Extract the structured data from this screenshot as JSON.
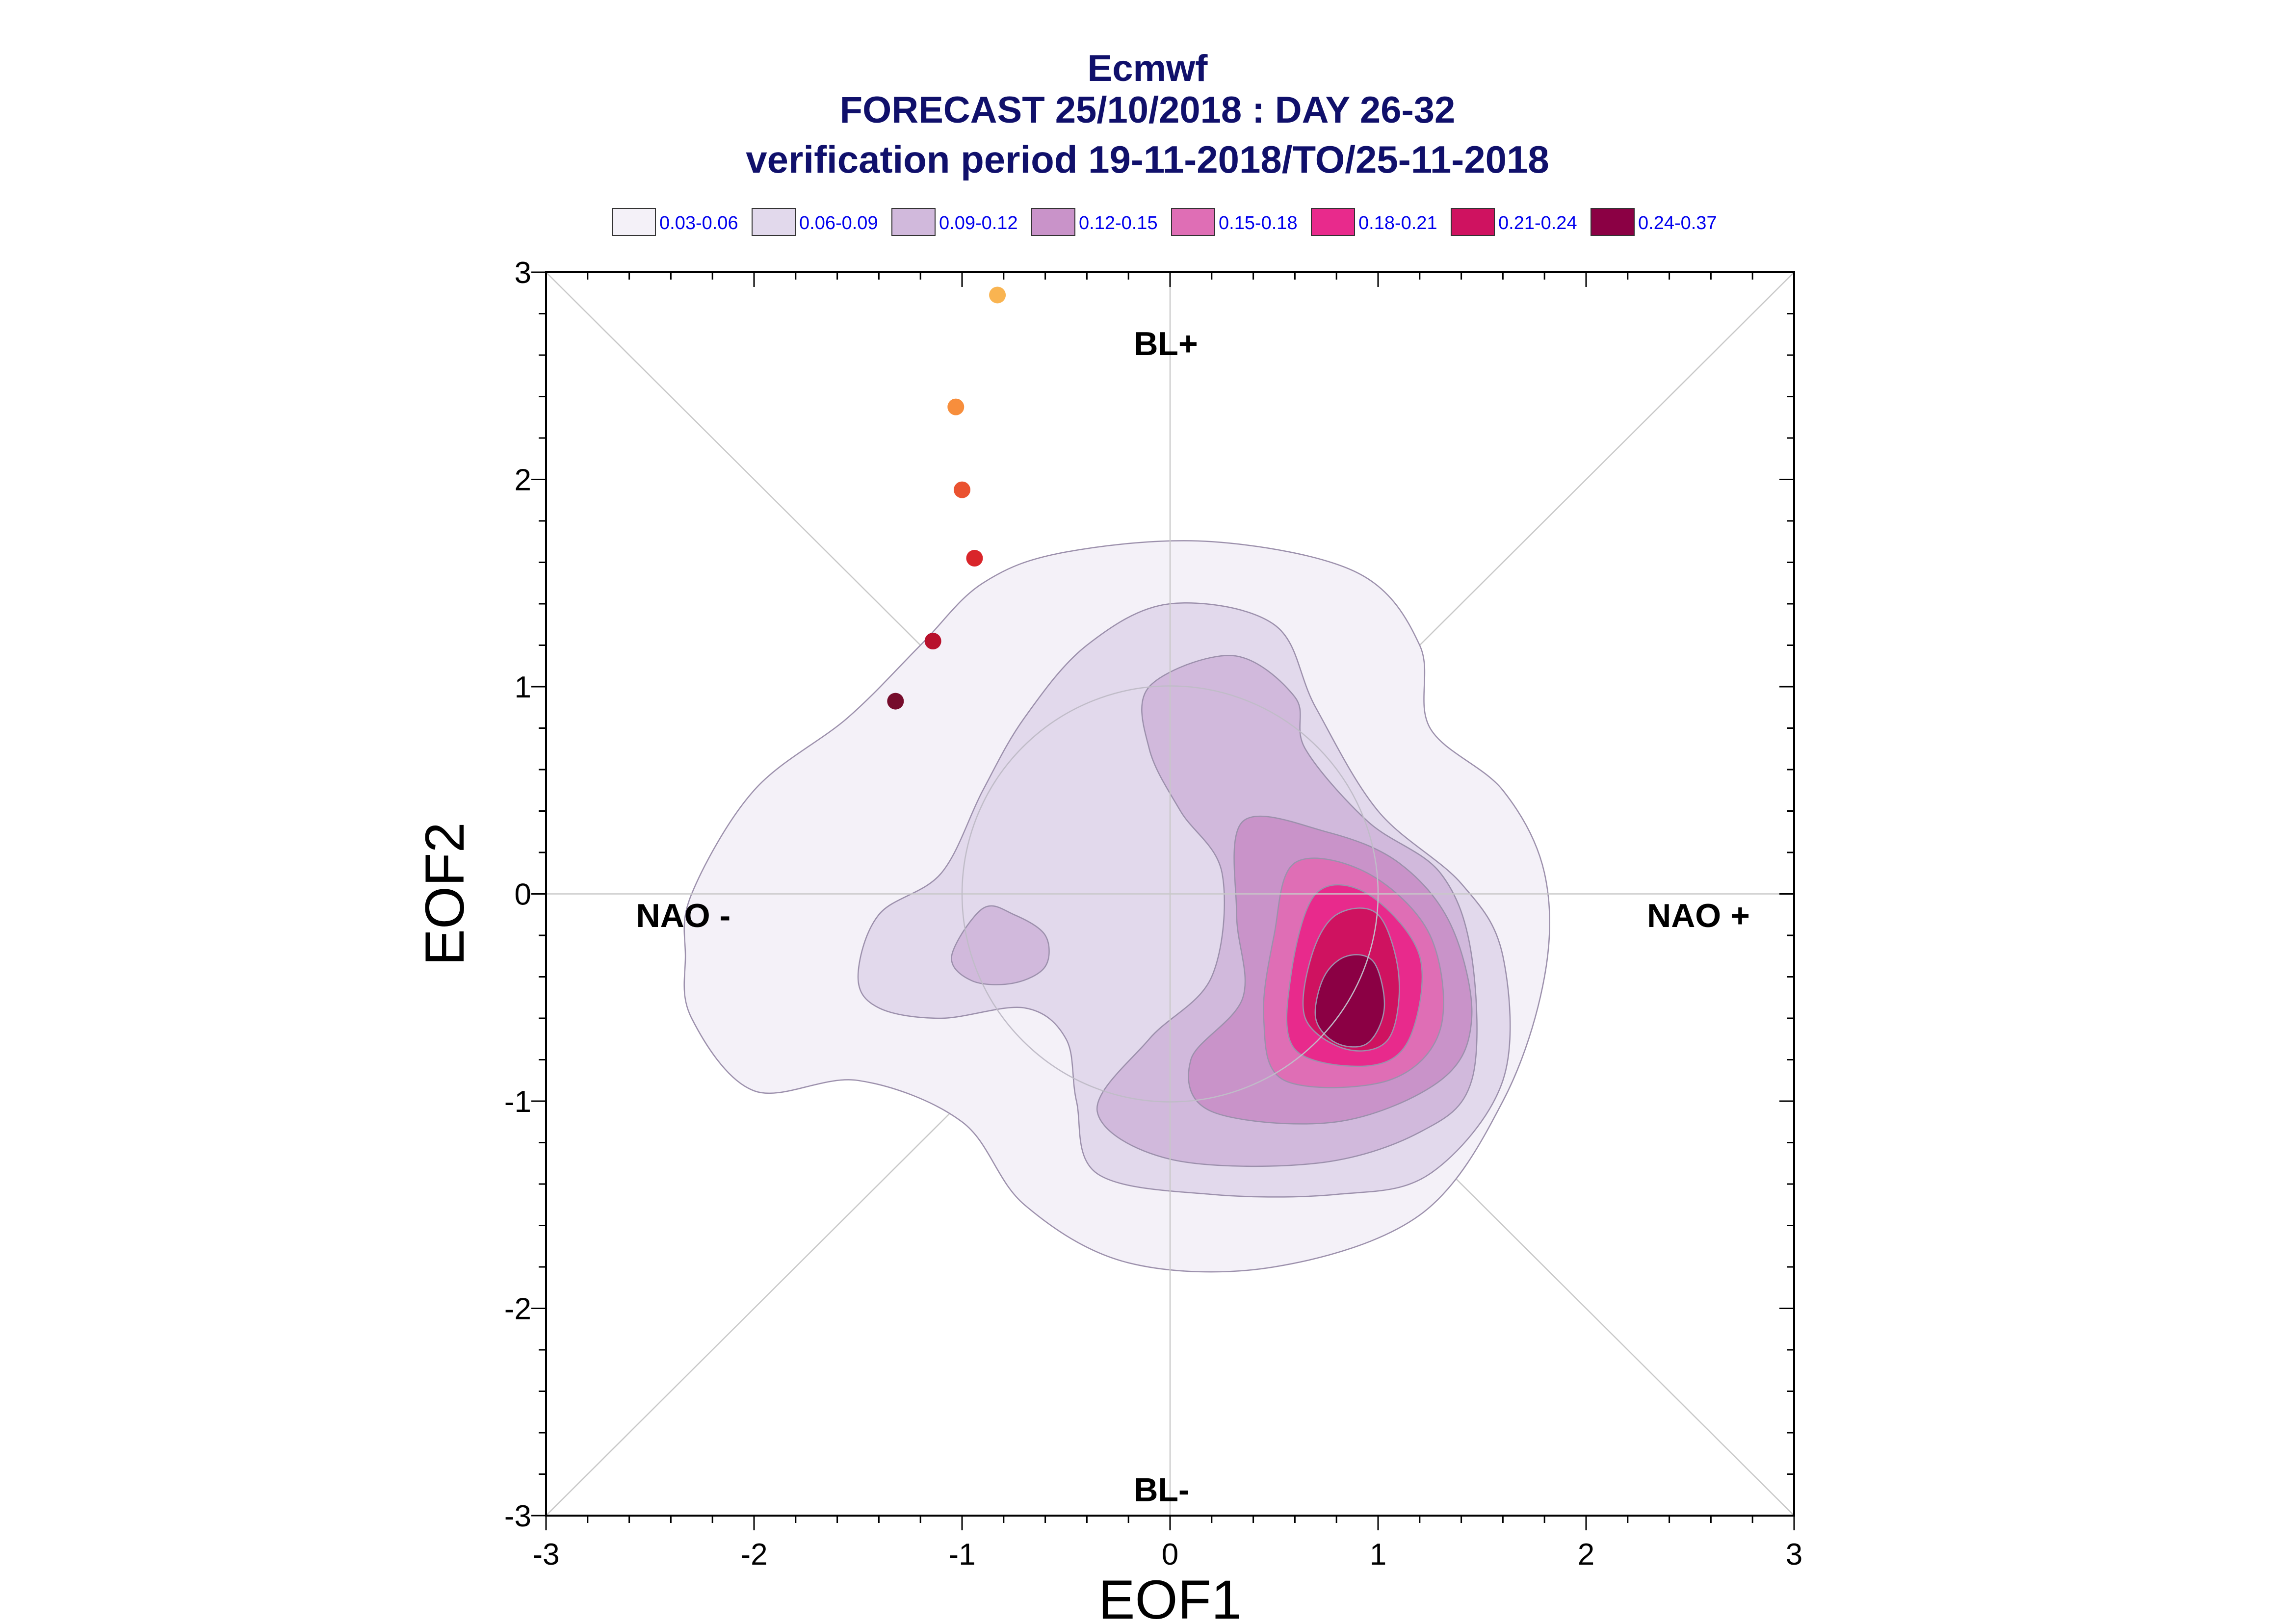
{
  "chart_data": {
    "type": "contour-scatter",
    "title_lines": [
      "Ecmwf",
      "FORECAST 25/10/2018 : DAY 26-32",
      "verification period 19-11-2018/TO/25-11-2018"
    ],
    "xlabel": "EOF1",
    "ylabel": "EOF2",
    "xlim": [
      -3,
      3
    ],
    "ylim": [
      -3,
      3
    ],
    "xticks": [
      "-3",
      "-2",
      "-1",
      "0",
      "1",
      "2",
      "3"
    ],
    "yticks": [
      "-3",
      "-2",
      "-1",
      "0",
      "1",
      "2",
      "3"
    ],
    "regimes": {
      "top": "BL+",
      "bottom": "BL-",
      "left": "NAO -",
      "right": "NAO +"
    },
    "legend": [
      {
        "label": "0.03-0.06",
        "color": "#f4f1f8"
      },
      {
        "label": "0.06-0.09",
        "color": "#e2d9ec"
      },
      {
        "label": "0.09-0.12",
        "color": "#d1b9dc"
      },
      {
        "label": "0.12-0.15",
        "color": "#c993c9"
      },
      {
        "label": "0.15-0.18",
        "color": "#df6eb5"
      },
      {
        "label": "0.18-0.21",
        "color": "#e82a8c"
      },
      {
        "label": "0.21-0.24",
        "color": "#cf1260"
      },
      {
        "label": "0.24-0.37",
        "color": "#8b0044"
      }
    ],
    "contours": [
      {
        "level": 0,
        "points": [
          [
            -2.3,
            0.0
          ],
          [
            -2.0,
            0.5
          ],
          [
            -1.55,
            0.85
          ],
          [
            -1.2,
            1.2
          ],
          [
            -0.9,
            1.5
          ],
          [
            -0.5,
            1.65
          ],
          [
            0.2,
            1.7
          ],
          [
            0.9,
            1.55
          ],
          [
            1.2,
            1.2
          ],
          [
            1.25,
            0.8
          ],
          [
            1.6,
            0.5
          ],
          [
            1.8,
            0.1
          ],
          [
            1.8,
            -0.4
          ],
          [
            1.6,
            -1.0
          ],
          [
            1.2,
            -1.55
          ],
          [
            0.5,
            -1.8
          ],
          [
            -0.2,
            -1.78
          ],
          [
            -0.7,
            -1.5
          ],
          [
            -1.0,
            -1.1
          ],
          [
            -1.5,
            -0.9
          ],
          [
            -2.0,
            -0.95
          ],
          [
            -2.3,
            -0.6
          ],
          [
            -2.33,
            -0.3
          ]
        ]
      },
      {
        "level": 1,
        "points": [
          [
            -1.5,
            -0.4
          ],
          [
            -1.4,
            -0.1
          ],
          [
            -1.1,
            0.1
          ],
          [
            -0.9,
            0.5
          ],
          [
            -0.7,
            0.85
          ],
          [
            -0.4,
            1.2
          ],
          [
            0.0,
            1.4
          ],
          [
            0.5,
            1.3
          ],
          [
            0.7,
            0.9
          ],
          [
            1.0,
            0.4
          ],
          [
            1.4,
            0.05
          ],
          [
            1.6,
            -0.3
          ],
          [
            1.6,
            -0.9
          ],
          [
            1.25,
            -1.35
          ],
          [
            0.8,
            -1.45
          ],
          [
            0.2,
            -1.45
          ],
          [
            -0.35,
            -1.35
          ],
          [
            -0.45,
            -1.0
          ],
          [
            -0.5,
            -0.7
          ],
          [
            -0.7,
            -0.55
          ],
          [
            -1.1,
            -0.6
          ],
          [
            -1.4,
            -0.55
          ]
        ]
      },
      {
        "level": 2,
        "points": [
          [
            -0.1,
            1.0
          ],
          [
            0.3,
            1.15
          ],
          [
            0.6,
            0.95
          ],
          [
            0.65,
            0.7
          ],
          [
            0.95,
            0.35
          ],
          [
            1.3,
            0.1
          ],
          [
            1.45,
            -0.3
          ],
          [
            1.45,
            -0.9
          ],
          [
            1.2,
            -1.15
          ],
          [
            0.7,
            -1.3
          ],
          [
            0.0,
            -1.28
          ],
          [
            -0.35,
            -1.05
          ],
          [
            -0.1,
            -0.7
          ],
          [
            0.2,
            -0.4
          ],
          [
            0.25,
            0.1
          ],
          [
            0.05,
            0.4
          ],
          [
            -0.1,
            0.7
          ]
        ]
      },
      {
        "level": 2,
        "points": [
          [
            -1.05,
            -0.3
          ],
          [
            -0.9,
            -0.07
          ],
          [
            -0.75,
            -0.1
          ],
          [
            -0.6,
            -0.2
          ],
          [
            -0.6,
            -0.35
          ],
          [
            -0.75,
            -0.43
          ],
          [
            -0.95,
            -0.42
          ]
        ]
      },
      {
        "level": 3,
        "points": [
          [
            0.35,
            0.35
          ],
          [
            0.75,
            0.3
          ],
          [
            1.1,
            0.15
          ],
          [
            1.35,
            -0.15
          ],
          [
            1.45,
            -0.6
          ],
          [
            1.3,
            -0.9
          ],
          [
            0.8,
            -1.1
          ],
          [
            0.2,
            -1.05
          ],
          [
            0.1,
            -0.8
          ],
          [
            0.35,
            -0.5
          ],
          [
            0.32,
            -0.1
          ]
        ]
      },
      {
        "level": 4,
        "points": [
          [
            0.6,
            0.15
          ],
          [
            0.95,
            0.1
          ],
          [
            1.25,
            -0.2
          ],
          [
            1.3,
            -0.65
          ],
          [
            1.05,
            -0.9
          ],
          [
            0.55,
            -0.9
          ],
          [
            0.45,
            -0.6
          ],
          [
            0.5,
            -0.2
          ]
        ]
      },
      {
        "level": 5,
        "points": [
          [
            0.7,
            0.0
          ],
          [
            0.95,
            0.0
          ],
          [
            1.2,
            -0.3
          ],
          [
            1.15,
            -0.7
          ],
          [
            0.95,
            -0.83
          ],
          [
            0.6,
            -0.75
          ],
          [
            0.58,
            -0.4
          ]
        ]
      },
      {
        "level": 6,
        "points": [
          [
            0.8,
            -0.1
          ],
          [
            1.0,
            -0.1
          ],
          [
            1.1,
            -0.4
          ],
          [
            1.05,
            -0.7
          ],
          [
            0.85,
            -0.75
          ],
          [
            0.65,
            -0.6
          ],
          [
            0.68,
            -0.3
          ]
        ]
      },
      {
        "level": 7,
        "points": [
          [
            0.85,
            -0.3
          ],
          [
            0.98,
            -0.33
          ],
          [
            1.03,
            -0.55
          ],
          [
            0.95,
            -0.72
          ],
          [
            0.8,
            -0.72
          ],
          [
            0.7,
            -0.6
          ],
          [
            0.74,
            -0.4
          ]
        ]
      }
    ],
    "points": [
      {
        "x": -0.83,
        "y": 2.89,
        "color": "#f9b451"
      },
      {
        "x": -1.03,
        "y": 2.35,
        "color": "#f78e3c"
      },
      {
        "x": -1.0,
        "y": 1.95,
        "color": "#ea5230"
      },
      {
        "x": -0.94,
        "y": 1.62,
        "color": "#d9252a"
      },
      {
        "x": -1.14,
        "y": 1.22,
        "color": "#b8122d"
      },
      {
        "x": -1.32,
        "y": 0.93,
        "color": "#760c2c"
      }
    ],
    "unit_circle_radius": 1
  }
}
